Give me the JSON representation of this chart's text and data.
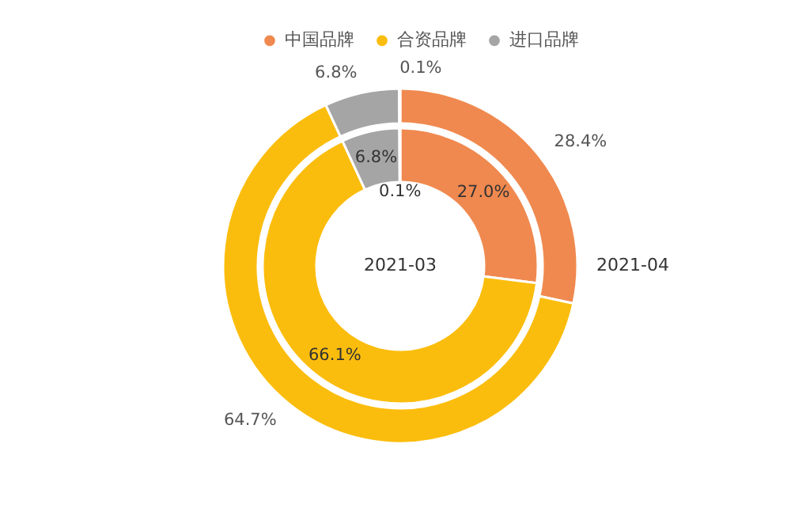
{
  "chart_data": {
    "type": "donut",
    "categories": [
      "中国品牌",
      "合资品牌",
      "进口品牌",
      null
    ],
    "colors": [
      "#f0894f",
      "#fbbd0d",
      "#a5a5a5",
      "#4472c4"
    ],
    "legend": "top",
    "series": [
      {
        "name": "2021-04",
        "values": [
          28.4,
          64.7,
          6.8,
          0.1
        ],
        "value_labels": [
          "28.4%",
          "64.7%",
          "6.8%",
          "0.1%"
        ]
      },
      {
        "name": "2021-03",
        "values": [
          27.0,
          66.1,
          6.8,
          0.1
        ],
        "value_labels": [
          "27.0%",
          "66.1%",
          "6.8%",
          "0.1%"
        ]
      }
    ]
  }
}
